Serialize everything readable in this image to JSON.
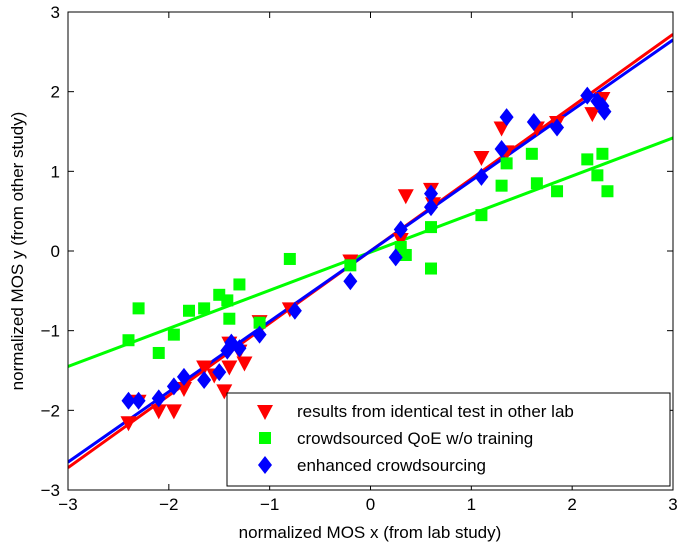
{
  "chart_data": {
    "type": "scatter",
    "xlabel": "normalized MOS x (from lab study)",
    "ylabel": "normalized MOS y (from other study)",
    "xlim": [
      -3,
      3
    ],
    "ylim": [
      -3,
      3
    ],
    "xticks": [
      "−3",
      "−2",
      "−1",
      "0",
      "1",
      "2",
      "3"
    ],
    "yticks": [
      "−3",
      "−2",
      "−1",
      "0",
      "1",
      "2",
      "3"
    ],
    "grid": false,
    "legend_position": "bottom-right",
    "series": [
      {
        "name": "results from identical test in other lab",
        "marker": "triangle-down",
        "color": "#ff0000",
        "points": [
          [
            -2.4,
            -2.15
          ],
          [
            -2.3,
            -1.88
          ],
          [
            -2.1,
            -2.0
          ],
          [
            -1.95,
            -2.0
          ],
          [
            -1.85,
            -1.72
          ],
          [
            -1.65,
            -1.45
          ],
          [
            -1.55,
            -1.55
          ],
          [
            -1.45,
            -1.75
          ],
          [
            -1.4,
            -1.45
          ],
          [
            -1.4,
            -1.15
          ],
          [
            -1.3,
            -1.25
          ],
          [
            -1.25,
            -1.4
          ],
          [
            -1.1,
            -0.88
          ],
          [
            -0.8,
            -0.72
          ],
          [
            -0.2,
            -0.12
          ],
          [
            0.3,
            0.15
          ],
          [
            0.35,
            0.7
          ],
          [
            0.6,
            0.78
          ],
          [
            0.62,
            0.6
          ],
          [
            1.1,
            1.18
          ],
          [
            1.3,
            1.55
          ],
          [
            1.35,
            1.25
          ],
          [
            1.65,
            1.55
          ],
          [
            1.85,
            1.62
          ],
          [
            2.2,
            1.73
          ],
          [
            2.3,
            1.92
          ]
        ],
        "fit": [
          [
            -3,
            -2.72
          ],
          [
            3,
            2.72
          ]
        ]
      },
      {
        "name": "crowdsourced QoE w/o training",
        "marker": "square",
        "color": "#00ff00",
        "points": [
          [
            -2.4,
            -1.12
          ],
          [
            -2.3,
            -0.72
          ],
          [
            -2.1,
            -1.28
          ],
          [
            -1.95,
            -1.05
          ],
          [
            -1.8,
            -0.75
          ],
          [
            -1.65,
            -0.72
          ],
          [
            -1.5,
            -0.55
          ],
          [
            -1.42,
            -0.62
          ],
          [
            -1.4,
            -0.85
          ],
          [
            -1.3,
            -0.42
          ],
          [
            -1.1,
            -0.9
          ],
          [
            -0.8,
            -0.1
          ],
          [
            -0.2,
            -0.18
          ],
          [
            0.3,
            0.05
          ],
          [
            0.35,
            -0.05
          ],
          [
            0.6,
            0.3
          ],
          [
            0.6,
            -0.22
          ],
          [
            1.1,
            0.45
          ],
          [
            1.3,
            0.82
          ],
          [
            1.35,
            1.1
          ],
          [
            1.6,
            1.22
          ],
          [
            1.65,
            0.85
          ],
          [
            1.85,
            0.75
          ],
          [
            2.15,
            1.15
          ],
          [
            2.25,
            0.95
          ],
          [
            2.3,
            1.22
          ],
          [
            2.35,
            0.75
          ]
        ],
        "fit": [
          [
            -3,
            -1.45
          ],
          [
            3,
            1.42
          ]
        ]
      },
      {
        "name": "enhanced crowdsourcing",
        "marker": "diamond",
        "color": "#0000ff",
        "points": [
          [
            -2.4,
            -1.88
          ],
          [
            -2.3,
            -1.88
          ],
          [
            -2.1,
            -1.85
          ],
          [
            -1.95,
            -1.7
          ],
          [
            -1.85,
            -1.58
          ],
          [
            -1.65,
            -1.62
          ],
          [
            -1.5,
            -1.52
          ],
          [
            -1.42,
            -1.25
          ],
          [
            -1.38,
            -1.15
          ],
          [
            -1.3,
            -1.22
          ],
          [
            -1.1,
            -1.05
          ],
          [
            -0.75,
            -0.75
          ],
          [
            -0.2,
            -0.38
          ],
          [
            0.25,
            -0.08
          ],
          [
            0.3,
            0.27
          ],
          [
            0.6,
            0.55
          ],
          [
            0.6,
            0.72
          ],
          [
            1.1,
            0.93
          ],
          [
            1.3,
            1.28
          ],
          [
            1.35,
            1.68
          ],
          [
            1.62,
            1.62
          ],
          [
            1.85,
            1.55
          ],
          [
            2.15,
            1.95
          ],
          [
            2.25,
            1.88
          ],
          [
            2.3,
            1.82
          ],
          [
            2.32,
            1.75
          ]
        ],
        "fit": [
          [
            -3,
            -2.65
          ],
          [
            3,
            2.65
          ]
        ]
      }
    ]
  }
}
